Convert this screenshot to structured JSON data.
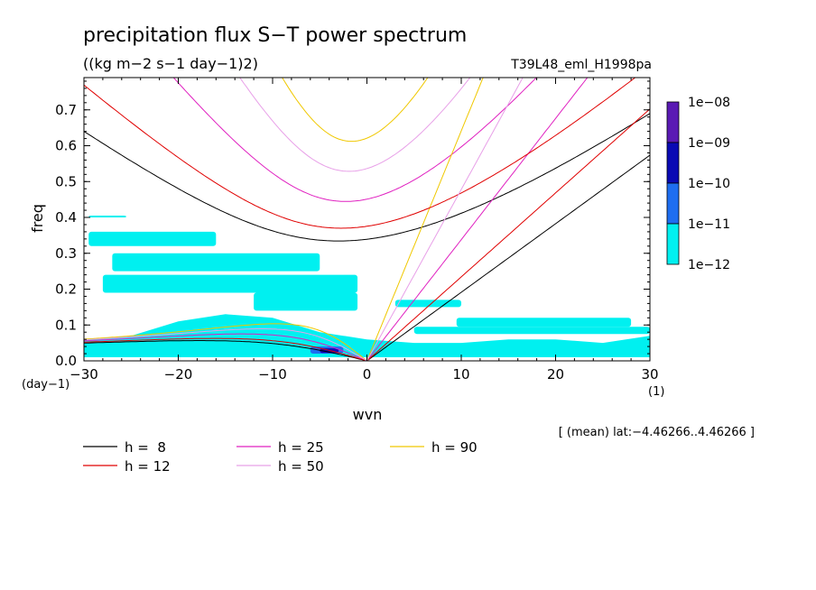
{
  "chart_data": {
    "type": "heatmap",
    "title": "precipitation flux S−T power spectrum",
    "subtitle": "((kg m−2 s−1 day−1)2)",
    "run_label": "T39L48_eml_H1998pa",
    "xlabel": "wvn",
    "ylabel": "freq",
    "x_unit": "(1)",
    "y_unit": "(day−1)",
    "footnote": "[ (mean) lat:−4.46266..4.46266 ]",
    "xlim": [
      -30,
      30
    ],
    "ylim": [
      0,
      0.79
    ],
    "xticks": [
      -30,
      -20,
      -10,
      0,
      10,
      20,
      30
    ],
    "yticks": [
      0,
      0.1,
      0.2,
      0.3,
      0.4,
      0.5,
      0.6,
      0.7
    ],
    "xtick_labels": [
      "−30",
      "−20",
      "−10",
      "0",
      "10",
      "20",
      "30"
    ],
    "ytick_labels": [
      "0.0",
      "0.1",
      "0.2",
      "0.3",
      "0.4",
      "0.5",
      "0.6",
      "0.7"
    ],
    "colorbar": {
      "labels": [
        "1e−08",
        "1e−09",
        "1e−10",
        "1e−11",
        "1e−12"
      ],
      "colors": [
        "#5a1ab4",
        "#0a0ab4",
        "#1e6ef0",
        "#00f0f0"
      ]
    },
    "contour_fill_regions": [
      {
        "level": "1e-12..1e-11",
        "color": "#00f0f0",
        "x": [
          -30,
          -25,
          -20,
          -15,
          -10,
          -5,
          0,
          5,
          10,
          15,
          20,
          25,
          30
        ],
        "y_low": [
          0.01,
          0.01,
          0.01,
          0.01,
          0.01,
          0.01,
          0.01,
          0.01,
          0.01,
          0.01,
          0.01,
          0.01,
          0.01
        ],
        "y_high": [
          0.06,
          0.07,
          0.11,
          0.13,
          0.12,
          0.08,
          0.06,
          0.05,
          0.05,
          0.06,
          0.06,
          0.05,
          0.07
        ]
      },
      {
        "level": "patches",
        "color": "#00f0f0",
        "patches": [
          [
            -29.5,
            0.4,
            -25.5,
            0.405
          ],
          [
            -29.5,
            0.32,
            -16,
            0.36
          ],
          [
            -27,
            0.25,
            -5,
            0.3
          ],
          [
            -28,
            0.19,
            -1,
            0.24
          ],
          [
            -12,
            0.14,
            -1,
            0.19
          ],
          [
            3,
            0.15,
            10,
            0.17
          ],
          [
            9.5,
            0.095,
            28,
            0.12
          ],
          [
            -18,
            0.075,
            -6,
            0.09
          ],
          [
            5,
            0.075,
            30,
            0.095
          ]
        ]
      },
      {
        "level": "1e-11..1e-10",
        "color": "#1e6ef0",
        "patches": [
          [
            -6,
            0.02,
            -2.5,
            0.04
          ]
        ]
      },
      {
        "level": "1e-10..1e-09",
        "color": "#0a0ab4",
        "patches": [
          [
            -5,
            0.022,
            -3,
            0.035
          ]
        ]
      }
    ],
    "dispersion_curves": {
      "legend": [
        {
          "label": "h =  8",
          "color": "#000000"
        },
        {
          "label": "h = 25",
          "color": "#e020c0"
        },
        {
          "label": "h = 90",
          "color": "#f0c800"
        },
        {
          "label": "h = 12",
          "color": "#e00000"
        },
        {
          "label": "h = 50",
          "color": "#e8a0e8"
        }
      ],
      "equivalent_depths_m": [
        8,
        12,
        25,
        50,
        90
      ],
      "families": [
        "kelvin",
        "equatorial_rossby_n1",
        "inertio_gravity_n1"
      ]
    }
  }
}
